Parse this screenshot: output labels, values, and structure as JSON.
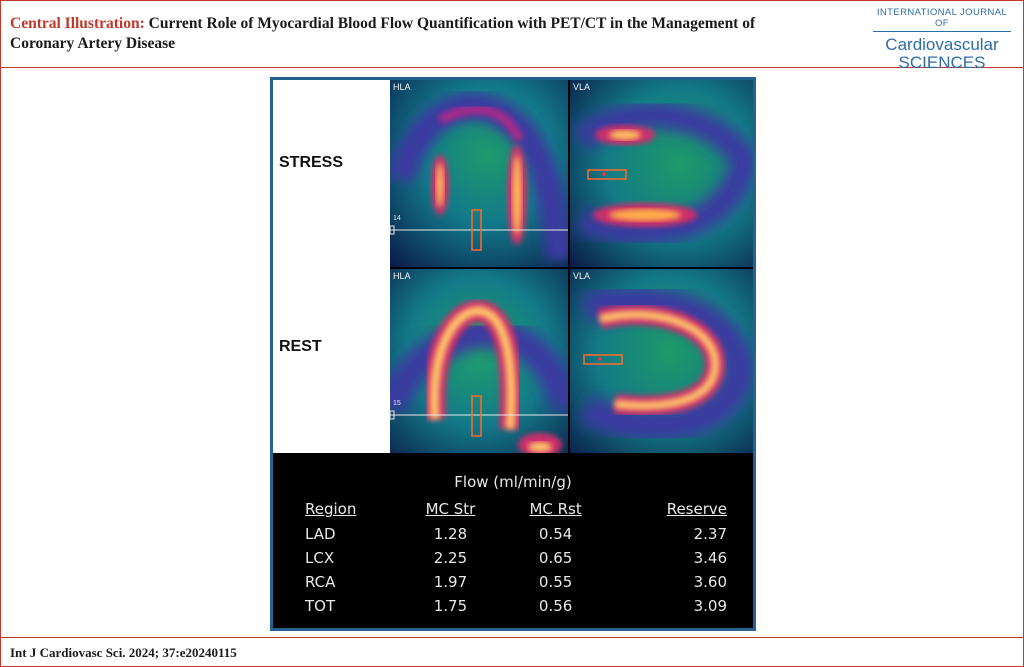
{
  "header": {
    "lead": "Central Illustration:",
    "title": "Current Role of Myocardial Blood Flow Quantification with PET/CT in the Management of Coronary Artery Disease"
  },
  "journal": {
    "line1": "INTERNATIONAL JOURNAL OF",
    "line2": "Cardiovascular",
    "line3": "SCIENCES"
  },
  "figure": {
    "rows": {
      "stress": "STRESS",
      "rest": "REST"
    },
    "panels": {
      "stress_hla": "HLA",
      "stress_vla": "VLA",
      "rest_hla": "HLA",
      "rest_vla": "VLA",
      "stress_slice": "14",
      "rest_slice": "15"
    }
  },
  "chart_data": {
    "type": "table",
    "title": "Flow (ml/min/g)",
    "columns": [
      "Region",
      "MC Str",
      "MC Rst",
      "Reserve"
    ],
    "rows": [
      [
        "LAD",
        "1.28",
        "0.54",
        "2.37"
      ],
      [
        "LCX",
        "2.25",
        "0.65",
        "3.46"
      ],
      [
        "RCA",
        "1.97",
        "0.55",
        "3.60"
      ],
      [
        "TOT",
        "1.75",
        "0.56",
        "3.09"
      ]
    ]
  },
  "footer": {
    "citation": "Int J Cardiovasc Sci. 2024; 37:e20240115"
  }
}
